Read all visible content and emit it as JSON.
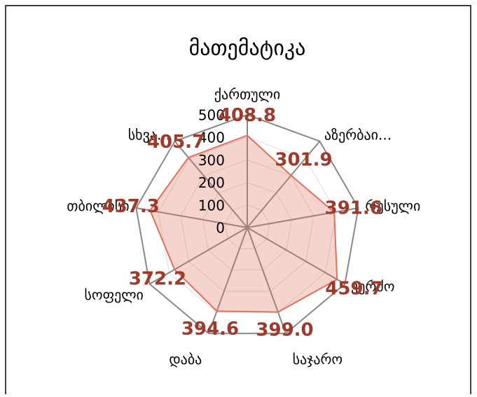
{
  "chart_data": {
    "type": "radar",
    "title": "მათემატიკა",
    "categories": [
      "ქართული",
      "აზერბაი...",
      "რუსული",
      "კერძო",
      "საჯარო",
      "დაბა",
      "სოფელი",
      "თბილისი",
      "სხვა..."
    ],
    "values": [
      408.8,
      301.9,
      391.6,
      459.7,
      399.0,
      394.6,
      372.2,
      437.3,
      405.7
    ],
    "value_labels": [
      "408.8",
      "301.9",
      "391.6",
      "459.7",
      "399.0",
      "394.6",
      "372.2",
      "437.3",
      "405.7"
    ],
    "color": "#e0705c",
    "ylim": [
      0,
      500
    ],
    "yticks": [
      0,
      100,
      200,
      300,
      400,
      500
    ],
    "grid": true
  }
}
